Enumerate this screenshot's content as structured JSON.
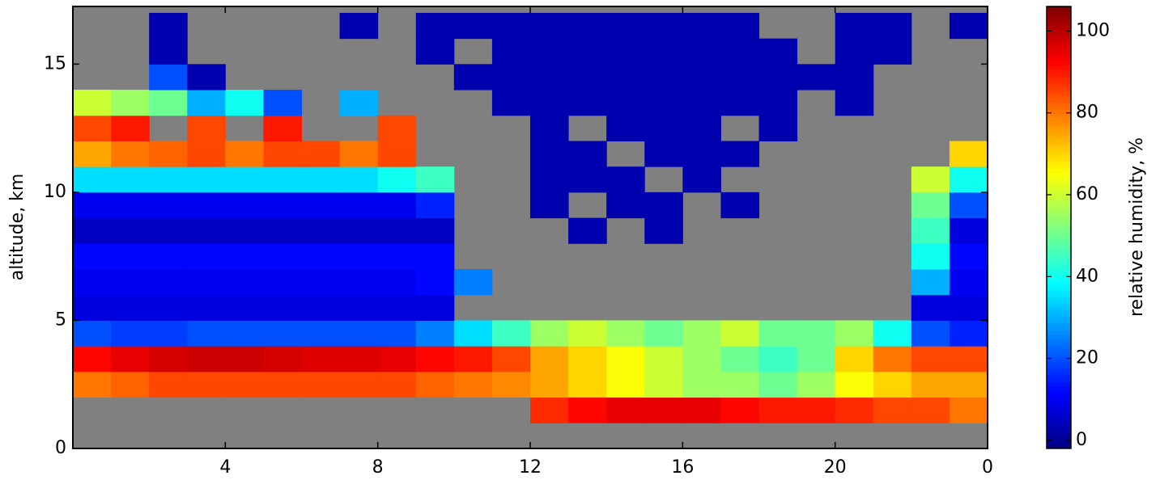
{
  "chart_data": {
    "type": "heatmap",
    "colormap": "jet",
    "missing_color": "#808080",
    "ylabel": "altitude, km",
    "colorbar_label": "relative humidity, %",
    "xlim": [
      0,
      24
    ],
    "ylim": [
      0,
      17.25
    ],
    "clim": [
      -2,
      106
    ],
    "xticks": [
      4,
      8,
      12,
      16,
      20,
      {
        "value": 24,
        "label": "0"
      }
    ],
    "yticks": [
      0,
      5,
      10,
      15
    ],
    "cticks": [
      0,
      20,
      40,
      60,
      80,
      100
    ],
    "x_edges": [
      0,
      1,
      2,
      3,
      4,
      5,
      6,
      7,
      8,
      9,
      10,
      11,
      12,
      13,
      14,
      15,
      16,
      17,
      18,
      19,
      20,
      21,
      22,
      23,
      24
    ],
    "y_edges": [
      0,
      1,
      2,
      3,
      4,
      5,
      6,
      7,
      8,
      9,
      10,
      11,
      12,
      13,
      14,
      15,
      16,
      17
    ],
    "z": [
      [
        null,
        null,
        null,
        null,
        null,
        null,
        null,
        null,
        null,
        null,
        null,
        null,
        null,
        null,
        null,
        null,
        null,
        null,
        null,
        null,
        null,
        null,
        null,
        null
      ],
      [
        null,
        null,
        null,
        null,
        null,
        null,
        null,
        null,
        null,
        null,
        null,
        null,
        88,
        92,
        95,
        95,
        95,
        92,
        90,
        90,
        88,
        85,
        85,
        80
      ],
      [
        80,
        82,
        85,
        85,
        85,
        85,
        85,
        85,
        85,
        82,
        80,
        78,
        75,
        70,
        65,
        60,
        55,
        55,
        50,
        55,
        65,
        70,
        75,
        75
      ],
      [
        92,
        95,
        97,
        98,
        98,
        97,
        96,
        96,
        95,
        92,
        90,
        85,
        75,
        70,
        65,
        60,
        55,
        50,
        45,
        50,
        70,
        80,
        85,
        85
      ],
      [
        20,
        18,
        18,
        20,
        20,
        20,
        20,
        20,
        20,
        25,
        35,
        45,
        55,
        60,
        55,
        50,
        55,
        60,
        50,
        50,
        55,
        40,
        20,
        15
      ],
      [
        8,
        8,
        8,
        8,
        8,
        8,
        8,
        8,
        8,
        8,
        null,
        null,
        null,
        null,
        null,
        null,
        null,
        null,
        null,
        null,
        null,
        null,
        8,
        8
      ],
      [
        10,
        10,
        10,
        10,
        10,
        10,
        10,
        10,
        10,
        12,
        25,
        null,
        null,
        null,
        null,
        null,
        null,
        null,
        null,
        null,
        null,
        null,
        30,
        10
      ],
      [
        12,
        12,
        12,
        12,
        12,
        12,
        12,
        12,
        12,
        12,
        null,
        null,
        null,
        null,
        null,
        null,
        null,
        null,
        null,
        null,
        null,
        null,
        40,
        12
      ],
      [
        5,
        5,
        5,
        5,
        5,
        5,
        5,
        5,
        5,
        5,
        null,
        null,
        null,
        3,
        null,
        3,
        null,
        null,
        null,
        null,
        null,
        null,
        45,
        8
      ],
      [
        10,
        10,
        10,
        10,
        10,
        10,
        10,
        10,
        10,
        15,
        null,
        null,
        3,
        null,
        3,
        3,
        null,
        3,
        null,
        null,
        null,
        null,
        50,
        20
      ],
      [
        35,
        35,
        35,
        35,
        35,
        35,
        35,
        35,
        40,
        45,
        null,
        null,
        3,
        3,
        3,
        null,
        3,
        null,
        null,
        null,
        null,
        null,
        60,
        40
      ],
      [
        75,
        80,
        82,
        85,
        80,
        85,
        85,
        80,
        85,
        null,
        null,
        null,
        3,
        3,
        null,
        3,
        3,
        3,
        null,
        null,
        null,
        null,
        null,
        70
      ],
      [
        85,
        90,
        null,
        85,
        null,
        90,
        null,
        null,
        85,
        null,
        null,
        null,
        3,
        null,
        3,
        3,
        3,
        null,
        3,
        null,
        null,
        null,
        null,
        null
      ],
      [
        60,
        55,
        50,
        30,
        40,
        20,
        null,
        30,
        null,
        null,
        null,
        3,
        3,
        3,
        3,
        3,
        3,
        3,
        3,
        null,
        3,
        null,
        null,
        null
      ],
      [
        null,
        null,
        20,
        3,
        null,
        null,
        null,
        null,
        null,
        null,
        3,
        3,
        3,
        3,
        3,
        3,
        3,
        3,
        3,
        3,
        3,
        null,
        null,
        null
      ],
      [
        null,
        null,
        3,
        null,
        null,
        null,
        null,
        null,
        null,
        3,
        null,
        3,
        3,
        3,
        3,
        3,
        3,
        3,
        3,
        null,
        3,
        3,
        null,
        null
      ],
      [
        null,
        null,
        3,
        null,
        null,
        null,
        null,
        3,
        null,
        3,
        3,
        3,
        3,
        3,
        3,
        3,
        3,
        3,
        null,
        null,
        3,
        3,
        null,
        3
      ]
    ]
  }
}
